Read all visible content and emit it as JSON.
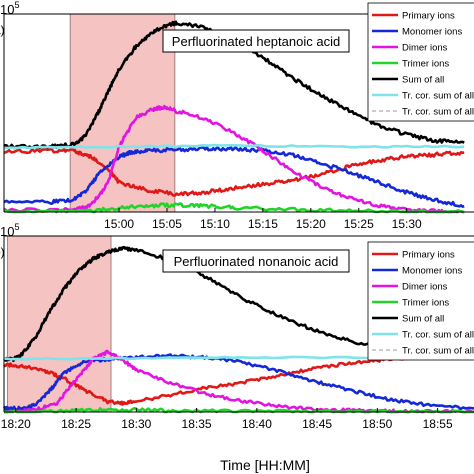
{
  "figure": {
    "xlabel": "Time [HH:MM]",
    "scale_label": "10",
    "scale_exp": "5"
  },
  "chart_data": [
    {
      "type": "line",
      "panel_label": "a)",
      "title": "Perfluorinated heptanoic acid",
      "xlim": [
        14.8,
        15.617
      ],
      "ylim": [
        0,
        1
      ],
      "x_ticks": [
        {
          "value": 15.0,
          "label": "15:00"
        },
        {
          "value": 15.0833,
          "label": "15:05"
        },
        {
          "value": 15.1667,
          "label": "15:10"
        },
        {
          "value": 15.25,
          "label": "15:15"
        },
        {
          "value": 15.3333,
          "label": "15:20"
        },
        {
          "value": 15.4167,
          "label": "15:25"
        },
        {
          "value": 15.5,
          "label": "15:30"
        }
      ],
      "shaded_region": {
        "x": [
          14.915,
          15.097
        ],
        "color": "#f6c3c3"
      },
      "series": [
        {
          "name": "Primary ions",
          "color": "#e01818",
          "dash": "",
          "x": [
            14.8,
            14.88,
            14.92,
            14.95,
            14.98,
            15.0,
            15.05,
            15.1,
            15.15,
            15.2,
            15.25,
            15.3,
            15.35,
            15.4,
            15.45,
            15.5,
            15.55,
            15.6
          ],
          "y": [
            0.305,
            0.31,
            0.31,
            0.28,
            0.22,
            0.15,
            0.11,
            0.09,
            0.1,
            0.12,
            0.14,
            0.16,
            0.19,
            0.23,
            0.26,
            0.28,
            0.29,
            0.3
          ]
        },
        {
          "name": "Monomer ions",
          "color": "#1428d6",
          "dash": "",
          "x": [
            14.8,
            14.88,
            14.92,
            14.94,
            14.97,
            15.0,
            15.02,
            15.05,
            15.1,
            15.15,
            15.2,
            15.25,
            15.3,
            15.35,
            15.4,
            15.45,
            15.5,
            15.55,
            15.6
          ],
          "y": [
            0.05,
            0.05,
            0.06,
            0.1,
            0.21,
            0.28,
            0.3,
            0.31,
            0.315,
            0.32,
            0.32,
            0.31,
            0.29,
            0.25,
            0.2,
            0.15,
            0.1,
            0.06,
            0.03
          ]
        },
        {
          "name": "Dimer ions",
          "color": "#e214e2",
          "dash": "",
          "x": [
            14.8,
            14.92,
            14.95,
            14.98,
            15.0,
            15.03,
            15.06,
            15.08,
            15.1,
            15.15,
            15.2,
            15.25,
            15.3,
            15.35,
            15.4,
            15.45,
            15.5,
            15.55,
            15.6
          ],
          "y": [
            0.01,
            0.01,
            0.03,
            0.14,
            0.33,
            0.48,
            0.52,
            0.53,
            0.51,
            0.47,
            0.4,
            0.31,
            0.21,
            0.13,
            0.07,
            0.03,
            0.015,
            0.005,
            0.0
          ]
        },
        {
          "name": "Trimer ions",
          "color": "#22d42a",
          "dash": "",
          "x": [
            14.8,
            14.95,
            15.0,
            15.05,
            15.1,
            15.15,
            15.2,
            15.3,
            15.4,
            15.5,
            15.6
          ],
          "y": [
            0.0,
            0.005,
            0.02,
            0.032,
            0.035,
            0.03,
            0.022,
            0.012,
            0.006,
            0.002,
            0.0
          ]
        },
        {
          "name": "Sum of all",
          "color": "#000000",
          "dash": "",
          "x": [
            14.8,
            14.88,
            14.92,
            14.94,
            14.96,
            14.98,
            15.0,
            15.03,
            15.06,
            15.09,
            15.1,
            15.15,
            15.2,
            15.25,
            15.3,
            15.35,
            15.4,
            15.45,
            15.5,
            15.55,
            15.6
          ],
          "y": [
            0.33,
            0.33,
            0.34,
            0.38,
            0.48,
            0.6,
            0.72,
            0.84,
            0.91,
            0.95,
            0.955,
            0.93,
            0.87,
            0.78,
            0.68,
            0.59,
            0.51,
            0.44,
            0.39,
            0.36,
            0.35
          ]
        },
        {
          "name": "Tr. cor. sum of all",
          "color": "#7fe3ea",
          "dash": "",
          "x": [
            14.8,
            15.0,
            15.2,
            15.4,
            15.6
          ],
          "y": [
            0.325,
            0.33,
            0.335,
            0.33,
            0.33
          ]
        },
        {
          "name": "Tr. cor. sum of all",
          "color": "#9a9a9a",
          "dash": "4,3",
          "x": [],
          "y": []
        }
      ]
    },
    {
      "type": "line",
      "panel_label": "b)",
      "title": "Perfluorinated nonanoic acid",
      "xlim": [
        18.317,
        18.967
      ],
      "ylim": [
        0,
        1
      ],
      "x_ticks": [
        {
          "value": 18.3333,
          "label": "18:20"
        },
        {
          "value": 18.4167,
          "label": "18:25"
        },
        {
          "value": 18.5,
          "label": "18:30"
        },
        {
          "value": 18.5833,
          "label": "18:35"
        },
        {
          "value": 18.6667,
          "label": "18:40"
        },
        {
          "value": 18.75,
          "label": "18:45"
        },
        {
          "value": 18.8333,
          "label": "18:50"
        },
        {
          "value": 18.9167,
          "label": "18:55"
        }
      ],
      "shaded_region": {
        "x": [
          18.322,
          18.465
        ],
        "color": "#f6c3c3"
      },
      "series": [
        {
          "name": "Primary ions",
          "color": "#e01818",
          "dash": "",
          "x": [
            18.317,
            18.34,
            18.37,
            18.4,
            18.43,
            18.46,
            18.48,
            18.5,
            18.55,
            18.6,
            18.65,
            18.7,
            18.75,
            18.8,
            18.85,
            18.9,
            18.967
          ],
          "y": [
            0.27,
            0.26,
            0.24,
            0.19,
            0.12,
            0.06,
            0.05,
            0.06,
            0.1,
            0.14,
            0.17,
            0.21,
            0.25,
            0.28,
            0.3,
            0.31,
            0.32
          ]
        },
        {
          "name": "Monomer ions",
          "color": "#1428d6",
          "dash": "",
          "x": [
            18.317,
            18.34,
            18.36,
            18.38,
            18.4,
            18.43,
            18.46,
            18.5,
            18.55,
            18.6,
            18.65,
            18.7,
            18.75,
            18.8,
            18.85,
            18.9,
            18.967
          ],
          "y": [
            0.02,
            0.02,
            0.04,
            0.12,
            0.22,
            0.29,
            0.3,
            0.31,
            0.32,
            0.31,
            0.28,
            0.23,
            0.17,
            0.12,
            0.07,
            0.04,
            0.02
          ]
        },
        {
          "name": "Dimer ions",
          "color": "#e214e2",
          "dash": "",
          "x": [
            18.317,
            18.36,
            18.39,
            18.42,
            18.44,
            18.46,
            18.48,
            18.5,
            18.55,
            18.6,
            18.65,
            18.7,
            18.75,
            18.8,
            18.85,
            18.9,
            18.967
          ],
          "y": [
            0.0,
            0.01,
            0.05,
            0.2,
            0.3,
            0.34,
            0.3,
            0.24,
            0.16,
            0.1,
            0.06,
            0.03,
            0.015,
            0.008,
            0.004,
            0.002,
            0.0
          ]
        },
        {
          "name": "Trimer ions",
          "color": "#22d42a",
          "dash": "",
          "x": [
            18.317,
            18.4,
            18.45,
            18.5,
            18.55,
            18.65,
            18.75,
            18.85,
            18.967
          ],
          "y": [
            0.0,
            0.005,
            0.012,
            0.012,
            0.008,
            0.004,
            0.002,
            0.001,
            0.0
          ]
        },
        {
          "name": "Sum of all",
          "color": "#000000",
          "dash": "",
          "x": [
            18.317,
            18.33,
            18.34,
            18.36,
            18.38,
            18.4,
            18.42,
            18.44,
            18.46,
            18.48,
            18.5,
            18.55,
            18.6,
            18.65,
            18.7,
            18.75,
            18.8,
            18.85,
            18.9,
            18.967
          ],
          "y": [
            0.3,
            0.3,
            0.32,
            0.42,
            0.57,
            0.7,
            0.8,
            0.87,
            0.91,
            0.93,
            0.92,
            0.86,
            0.76,
            0.64,
            0.54,
            0.46,
            0.4,
            0.36,
            0.34,
            0.34
          ]
        },
        {
          "name": "Tr. cor. sum of all",
          "color": "#7fe3ea",
          "dash": "",
          "x": [
            18.317,
            18.5,
            18.7,
            18.967
          ],
          "y": [
            0.3,
            0.305,
            0.31,
            0.31
          ]
        },
        {
          "name": "Tr. cor. sum of all",
          "color": "#9a9a9a",
          "dash": "4,3",
          "x": [],
          "y": []
        }
      ]
    }
  ]
}
